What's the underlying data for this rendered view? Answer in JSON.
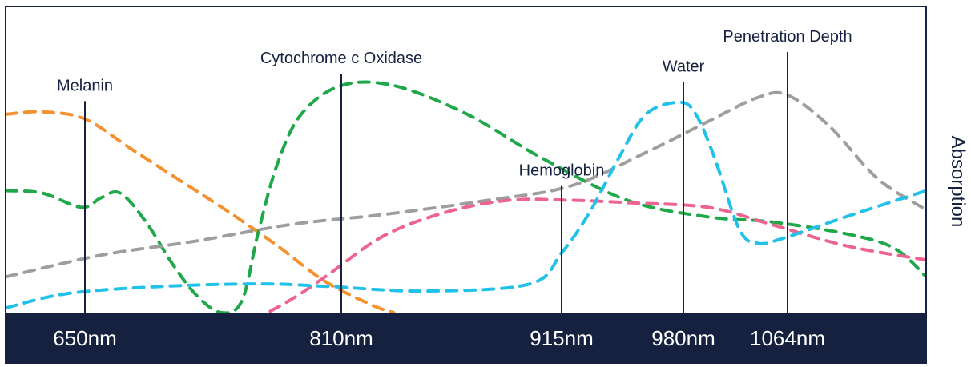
{
  "chart_data": {
    "type": "line",
    "title": "",
    "xlabel": "",
    "ylabel": "Absorption",
    "x_ticks": [
      {
        "nm": 650,
        "label": "650nm"
      },
      {
        "nm": 810,
        "label": "810nm"
      },
      {
        "nm": 915,
        "label": "915nm"
      },
      {
        "nm": 980,
        "label": "980nm"
      },
      {
        "nm": 1064,
        "label": "1064nm"
      }
    ],
    "markers": [
      {
        "nm": 650,
        "label": "Melanin",
        "top": 0.885
      },
      {
        "nm": 810,
        "label": "Cytochrome c Oxidase",
        "top": 1.0
      },
      {
        "nm": 915,
        "label": "Hemoglobin",
        "top": 0.53
      },
      {
        "nm": 980,
        "label": "Water",
        "top": 0.965
      },
      {
        "nm": 1064,
        "label": "Penetration Depth",
        "top": 1.09
      }
    ],
    "series": [
      {
        "color": "#f5922f",
        "points": [
          [
            604,
            0.83
          ],
          [
            625,
            0.84
          ],
          [
            650,
            0.81
          ],
          [
            680,
            0.68
          ],
          [
            710,
            0.55
          ],
          [
            740,
            0.42
          ],
          [
            770,
            0.28
          ],
          [
            800,
            0.13
          ],
          [
            825,
            0.03
          ],
          [
            835,
            0.0
          ]
        ]
      },
      {
        "color": "#1fa84a",
        "points": [
          [
            604,
            0.51
          ],
          [
            625,
            0.5
          ],
          [
            648,
            0.44
          ],
          [
            660,
            0.48
          ],
          [
            672,
            0.5
          ],
          [
            688,
            0.38
          ],
          [
            705,
            0.2
          ],
          [
            720,
            0.07
          ],
          [
            735,
            0.0
          ],
          [
            748,
            0.05
          ],
          [
            758,
            0.33
          ],
          [
            770,
            0.62
          ],
          [
            785,
            0.83
          ],
          [
            810,
            0.95
          ],
          [
            835,
            0.95
          ],
          [
            870,
            0.83
          ],
          [
            905,
            0.65
          ],
          [
            950,
            0.47
          ],
          [
            1000,
            0.4
          ],
          [
            1050,
            0.38
          ],
          [
            1100,
            0.33
          ],
          [
            1130,
            0.27
          ],
          [
            1150,
            0.15
          ]
        ]
      },
      {
        "color": "#9e9e9e",
        "points": [
          [
            604,
            0.15
          ],
          [
            660,
            0.24
          ],
          [
            720,
            0.3
          ],
          [
            780,
            0.37
          ],
          [
            830,
            0.41
          ],
          [
            880,
            0.47
          ],
          [
            920,
            0.53
          ],
          [
            960,
            0.67
          ],
          [
            1000,
            0.8
          ],
          [
            1040,
            0.9
          ],
          [
            1064,
            0.91
          ],
          [
            1090,
            0.78
          ],
          [
            1120,
            0.56
          ],
          [
            1150,
            0.43
          ]
        ]
      },
      {
        "color": "#ed6391",
        "points": [
          [
            735,
            -0.1
          ],
          [
            775,
            0.04
          ],
          [
            800,
            0.15
          ],
          [
            830,
            0.32
          ],
          [
            860,
            0.42
          ],
          [
            890,
            0.47
          ],
          [
            920,
            0.47
          ],
          [
            950,
            0.46
          ],
          [
            1000,
            0.44
          ],
          [
            1050,
            0.37
          ],
          [
            1100,
            0.28
          ],
          [
            1150,
            0.22
          ]
        ]
      },
      {
        "color": "#21c1e9",
        "points": [
          [
            604,
            0.02
          ],
          [
            640,
            0.08
          ],
          [
            700,
            0.11
          ],
          [
            760,
            0.12
          ],
          [
            800,
            0.11
          ],
          [
            850,
            0.09
          ],
          [
            900,
            0.12
          ],
          [
            915,
            0.25
          ],
          [
            930,
            0.42
          ],
          [
            945,
            0.64
          ],
          [
            960,
            0.83
          ],
          [
            978,
            0.88
          ],
          [
            990,
            0.83
          ],
          [
            1005,
            0.65
          ],
          [
            1025,
            0.35
          ],
          [
            1040,
            0.29
          ],
          [
            1060,
            0.31
          ],
          [
            1100,
            0.4
          ],
          [
            1150,
            0.51
          ]
        ]
      }
    ],
    "legend": "none",
    "grid": false
  }
}
